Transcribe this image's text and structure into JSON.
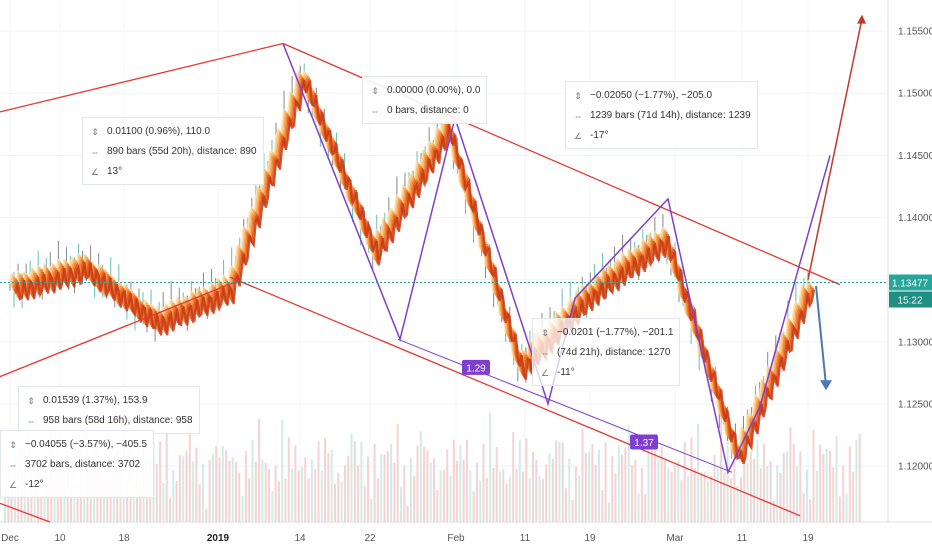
{
  "chart_data": {
    "type": "line",
    "title": "",
    "series": [
      {
        "x": [
          "Dec",
          "10",
          "18",
          "2019",
          "14",
          "22",
          "Feb",
          "11",
          "19",
          "Mar",
          "11",
          "19"
        ],
        "values": [
          1.1345,
          1.1362,
          1.1318,
          1.1345,
          1.1515,
          1.1375,
          1.1475,
          1.1282,
          1.1343,
          1.1385,
          1.121,
          1.1348
        ]
      }
    ],
    "xlabel": "",
    "ylabel": "",
    "ylim": [
      1.1155,
      1.1575
    ],
    "y_ticks": [
      "1.15500",
      "1.15000",
      "1.14500",
      "1.14000",
      "1.13500",
      "1.13000",
      "1.12500",
      "1.12000"
    ],
    "x_ticks": [
      "Dec",
      "10",
      "18",
      "2019",
      "14",
      "22",
      "Feb",
      "11",
      "19",
      "Mar",
      "11",
      "19"
    ],
    "current_price": "1.13477",
    "countdown": "15:22",
    "channel_ratio_labels": [
      "1.29",
      "1.37"
    ],
    "annotations": [
      {
        "price": "0.01100 (0.96%), 110.0",
        "bars": "890 bars (55d 20h), distance: 890",
        "angle": "13°"
      },
      {
        "price": "0.00000 (0.00%), 0.0",
        "bars": "0 bars, distance: 0"
      },
      {
        "price": "−0.02050 (−1.77%), −205.0",
        "bars": "1239 bars (71d 14h), distance: 1239",
        "angle": "-17°"
      },
      {
        "price": "−0.0201 (−1.77%), −201.1",
        "bars": "(74d 21h), distance: 1270",
        "angle": "-11°"
      },
      {
        "price": "0.01539 (1.37%), 153.9",
        "bars": "958 bars (58d 16h), distance: 958"
      },
      {
        "price": "−0.04055 (−3.57%), −405.5",
        "bars": "3702 bars, distance: 3702",
        "angle": "-12°"
      }
    ],
    "colors": {
      "channel": "#e53935",
      "zigzag": "#7e3fd1",
      "projection_up": "#c0392b",
      "projection_down": "#4a78b8",
      "price_line": "#26a69a"
    }
  }
}
